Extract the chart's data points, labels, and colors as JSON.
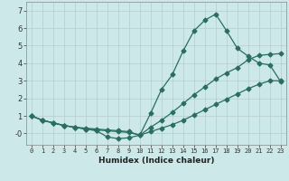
{
  "title": "",
  "xlabel": "Humidex (Indice chaleur)",
  "background_color": "#cde8e8",
  "grid_color": "#b8cccc",
  "line_color": "#2a6e62",
  "xlim": [
    -0.5,
    23.5
  ],
  "ylim": [
    -0.65,
    7.5
  ],
  "yticks": [
    0,
    1,
    2,
    3,
    4,
    5,
    6,
    7
  ],
  "ytick_labels": [
    "-0",
    "1",
    "2",
    "3",
    "4",
    "5",
    "6",
    "7"
  ],
  "xticks": [
    0,
    1,
    2,
    3,
    4,
    5,
    6,
    7,
    8,
    9,
    10,
    11,
    12,
    13,
    14,
    15,
    16,
    17,
    18,
    19,
    20,
    21,
    22,
    23
  ],
  "line1_x": [
    0,
    1,
    2,
    3,
    4,
    5,
    6,
    7,
    8,
    9,
    10,
    11,
    12,
    13,
    14,
    15,
    16,
    17,
    18,
    19,
    20,
    21,
    22,
    23
  ],
  "line1_y": [
    1.0,
    0.75,
    0.6,
    0.45,
    0.35,
    0.25,
    0.2,
    0.15,
    0.1,
    0.05,
    -0.1,
    1.15,
    2.5,
    3.35,
    4.7,
    5.85,
    6.45,
    6.8,
    5.85,
    4.85,
    4.4,
    4.0,
    3.9,
    2.95
  ],
  "line2_x": [
    0,
    1,
    2,
    3,
    4,
    5,
    6,
    7,
    8,
    9,
    10,
    11,
    12,
    13,
    14,
    15,
    16,
    17,
    18,
    19,
    20,
    21,
    22,
    23
  ],
  "line2_y": [
    1.0,
    0.75,
    0.6,
    0.45,
    0.35,
    0.3,
    0.25,
    0.2,
    0.15,
    0.1,
    -0.1,
    0.35,
    0.75,
    1.2,
    1.7,
    2.2,
    2.65,
    3.1,
    3.45,
    3.75,
    4.2,
    4.45,
    4.5,
    4.55
  ],
  "line3_x": [
    0,
    1,
    2,
    3,
    4,
    5,
    6,
    7,
    8,
    9,
    10,
    11,
    12,
    13,
    14,
    15,
    16,
    17,
    18,
    19,
    20,
    21,
    22,
    23
  ],
  "line3_y": [
    1.0,
    0.75,
    0.6,
    0.45,
    0.35,
    0.25,
    0.15,
    -0.2,
    -0.3,
    -0.25,
    -0.1,
    0.1,
    0.3,
    0.5,
    0.75,
    1.05,
    1.35,
    1.65,
    1.95,
    2.25,
    2.55,
    2.8,
    3.0,
    3.0
  ]
}
